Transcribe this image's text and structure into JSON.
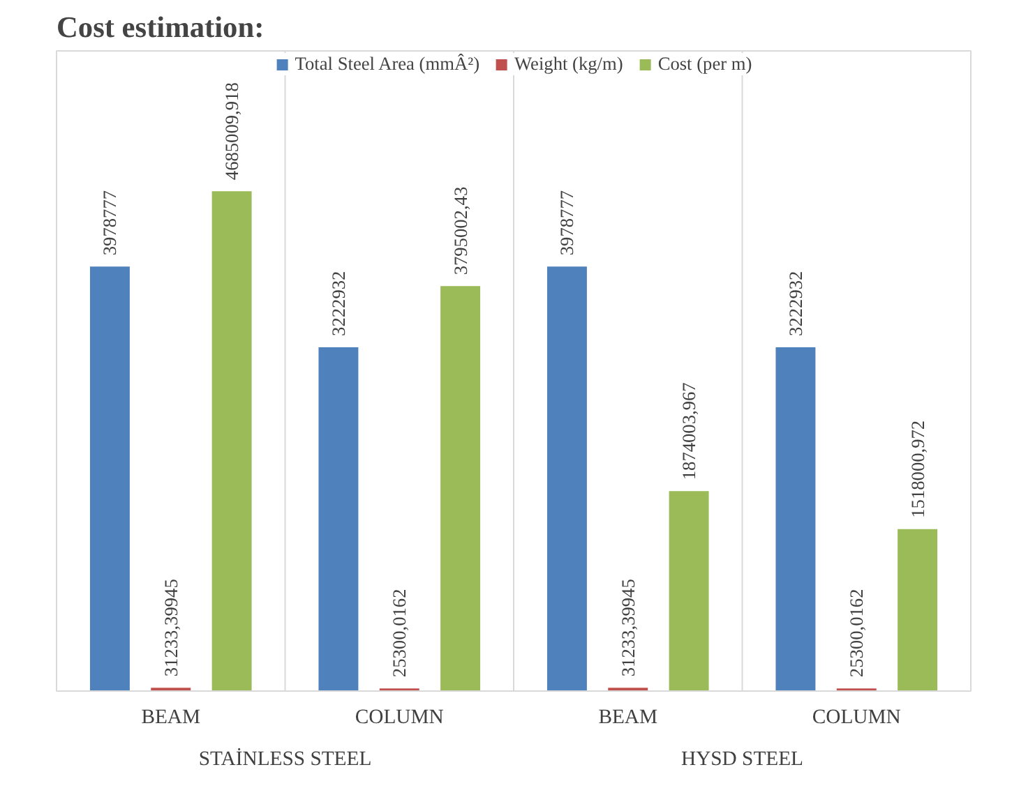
{
  "chart_data": {
    "type": "bar",
    "title": "Cost estimation:",
    "categories": [
      "BEAM",
      "COLUMN",
      "BEAM",
      "COLUMN"
    ],
    "series": [
      {
        "name": "Total Steel Area (mmÂ²)",
        "color": "#4f81bd",
        "values": [
          3978777,
          3222932,
          3978777,
          3222932
        ],
        "value_labels": [
          "3978777",
          "3222932",
          "3978777",
          "3222932"
        ]
      },
      {
        "name": "Weight (kg/m)",
        "color": "#c0504d",
        "values": [
          31233.39945,
          25300.0162,
          31233.39945,
          25300.0162
        ],
        "value_labels": [
          "31233,39945",
          "25300,0162",
          "31233,39945",
          "25300,0162"
        ]
      },
      {
        "name": "Cost (per m)",
        "color": "#9bbb59",
        "values": [
          4685009.918,
          3795002.43,
          1874003.967,
          1518000.972
        ],
        "value_labels": [
          "4685009,918",
          "3795002,43",
          "1874003,967",
          "1518000,972"
        ]
      }
    ],
    "annotations": [
      "STAİNLESS STEEL",
      "HYSD STEEL"
    ],
    "ylim": [
      0,
      6000000
    ],
    "tick_labels": "x",
    "grid": false,
    "legend": "top"
  }
}
